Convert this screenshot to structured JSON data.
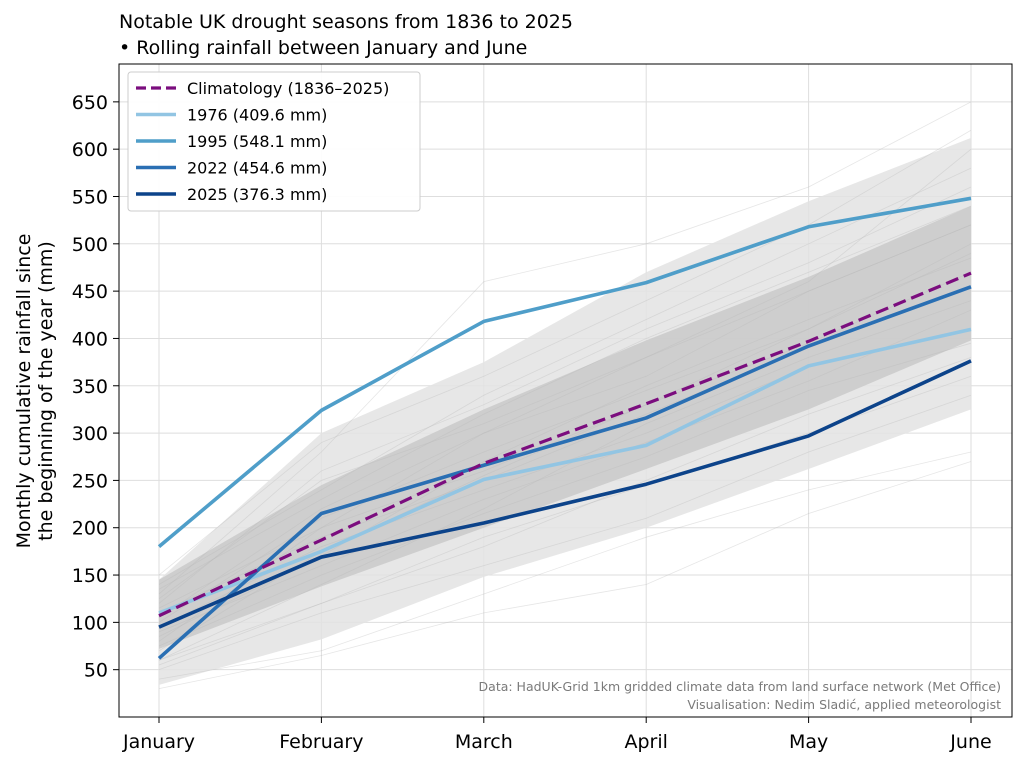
{
  "chart_data": {
    "type": "line",
    "title": "Notable UK drought seasons from 1836 to 2025",
    "subtitle": "• Rolling rainfall between January and June",
    "xlabel": "",
    "ylabel_line1": "Monthly cumulative rainfall since",
    "ylabel_line2": "the beginning of the year (mm)",
    "categories": [
      "January",
      "February",
      "March",
      "April",
      "May",
      "June"
    ],
    "ylim": [
      0,
      690
    ],
    "yticks": [
      50,
      100,
      150,
      200,
      250,
      300,
      350,
      400,
      450,
      500,
      550,
      600,
      650
    ],
    "grid": true,
    "legend_position": "top-left",
    "bands": [
      {
        "name": "outer envelope",
        "lower": [
          34,
          82,
          148,
          200,
          262,
          325
        ],
        "upper": [
          145,
          300,
          375,
          470,
          545,
          612
        ],
        "color": "#e3e3e3"
      },
      {
        "name": "inner envelope",
        "lower": [
          72,
          138,
          200,
          262,
          325,
          398
        ],
        "upper": [
          145,
          245,
          325,
          398,
          465,
          540
        ],
        "color": "#c6c6c6"
      }
    ],
    "faint_years": [
      [
        70,
        175,
        255,
        330,
        395,
        470
      ],
      [
        120,
        260,
        330,
        410,
        480,
        560
      ],
      [
        90,
        160,
        230,
        290,
        355,
        430
      ],
      [
        55,
        120,
        190,
        245,
        300,
        360
      ],
      [
        135,
        230,
        320,
        400,
        470,
        540
      ],
      [
        100,
        210,
        280,
        345,
        410,
        490
      ],
      [
        40,
        70,
        130,
        190,
        240,
        280
      ],
      [
        80,
        200,
        300,
        380,
        450,
        520
      ],
      [
        150,
        290,
        360,
        440,
        520,
        620
      ],
      [
        60,
        140,
        220,
        310,
        380,
        440
      ],
      [
        110,
        190,
        250,
        320,
        390,
        455
      ],
      [
        125,
        250,
        310,
        380,
        460,
        600
      ],
      [
        95,
        180,
        240,
        300,
        370,
        410
      ],
      [
        75,
        150,
        215,
        275,
        345,
        395
      ],
      [
        130,
        280,
        460,
        500,
        560,
        650
      ],
      [
        30,
        65,
        110,
        140,
        215,
        270
      ],
      [
        60,
        120,
        180,
        250,
        320,
        380
      ],
      [
        140,
        240,
        340,
        420,
        500,
        580
      ],
      [
        105,
        220,
        300,
        360,
        450,
        520
      ],
      [
        85,
        170,
        270,
        350,
        420,
        485
      ],
      [
        50,
        110,
        160,
        210,
        280,
        340
      ],
      [
        115,
        200,
        260,
        330,
        410,
        500
      ]
    ],
    "series": [
      {
        "name": "Climatology (1836–2025)",
        "values": [
          107,
          187,
          268,
          331,
          397,
          469
        ],
        "color": "#7b0d7e",
        "dashed": true
      },
      {
        "name": "1976 (409.6 mm)",
        "values": [
          110,
          175,
          251,
          287,
          371,
          409.6
        ],
        "color": "#92c5e3",
        "dashed": false
      },
      {
        "name": "1995 (548.1 mm)",
        "values": [
          180,
          324,
          418,
          459,
          518,
          548.1
        ],
        "color": "#4f9ec9",
        "dashed": false
      },
      {
        "name": "2022 (454.6 mm)",
        "values": [
          62,
          215,
          266,
          316,
          392,
          454.6
        ],
        "color": "#2a6fb3",
        "dashed": false
      },
      {
        "name": "2025 (376.3 mm)",
        "values": [
          95,
          169,
          205,
          246,
          297,
          376.3
        ],
        "color": "#0c438a",
        "dashed": false
      }
    ],
    "credit_line1": "Data: HadUK-Grid 1km gridded climate data from land surface network (Met Office)",
    "credit_line2": "Visualisation: Nedim Sladić, applied meteorologist"
  }
}
